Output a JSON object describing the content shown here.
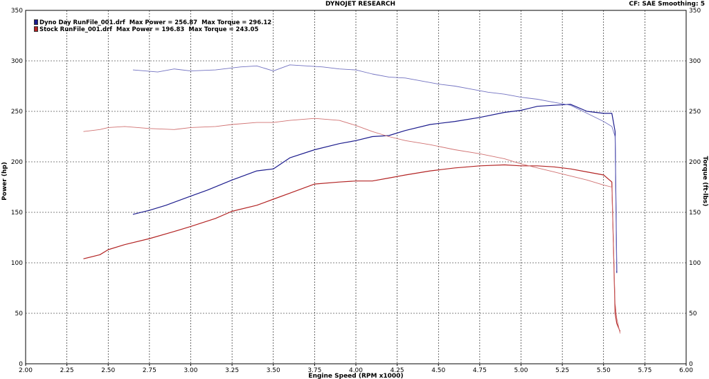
{
  "header": {
    "title": "DYNOJET RESEARCH",
    "settings": "CF: SAE  Smoothing: 5"
  },
  "legend": [
    {
      "file": "Dyno Day RunFile_001.drf",
      "max_power": "Max Power = 256.87",
      "max_torque": "Max Torque = 296.12",
      "color": "#1a1a8c"
    },
    {
      "file": "Stock RunFile_001.drf",
      "max_power": "Max Power = 196.83",
      "max_torque": "Max Torque = 243.05",
      "color": "#b22222"
    }
  ],
  "chart_data": {
    "type": "line",
    "xlabel": "Engine Speed (RPM x1000)",
    "ylabel_left": "Power (hp)",
    "ylabel_right": "Torque (ft-lbs)",
    "xlim": [
      2.0,
      6.0
    ],
    "ylim": [
      0,
      350
    ],
    "xticks": [
      "2.00",
      "2.25",
      "2.50",
      "2.75",
      "3.00",
      "3.25",
      "3.50",
      "3.75",
      "4.00",
      "4.25",
      "4.50",
      "4.75",
      "5.00",
      "5.25",
      "5.50",
      "5.75",
      "6.00"
    ],
    "yticks": [
      "0",
      "50",
      "100",
      "150",
      "200",
      "250",
      "300",
      "350"
    ],
    "grid": true,
    "series": [
      {
        "name": "Dyno Day RunFile_001.drf",
        "measure": "power",
        "color": "#1a1a8c",
        "x": [
          2.65,
          2.75,
          2.85,
          3.0,
          3.1,
          3.25,
          3.4,
          3.5,
          3.6,
          3.75,
          3.9,
          4.0,
          4.1,
          4.2,
          4.3,
          4.45,
          4.6,
          4.75,
          4.9,
          5.0,
          5.1,
          5.2,
          5.3,
          5.4,
          5.5,
          5.55,
          5.57,
          5.58
        ],
        "y": [
          148,
          152,
          157,
          166,
          172,
          182,
          191,
          193,
          204,
          212,
          218,
          221,
          225,
          226,
          231,
          237,
          240,
          244,
          249,
          251,
          255,
          256,
          257,
          250,
          248,
          248,
          230,
          90
        ]
      },
      {
        "name": "Dyno Day RunFile_001.drf",
        "measure": "torque",
        "color": "#7070c0",
        "x": [
          2.65,
          2.8,
          2.9,
          3.0,
          3.15,
          3.3,
          3.4,
          3.5,
          3.6,
          3.7,
          3.8,
          3.9,
          4.0,
          4.1,
          4.2,
          4.3,
          4.4,
          4.5,
          4.6,
          4.7,
          4.8,
          4.9,
          5.0,
          5.1,
          5.2,
          5.3,
          5.4,
          5.5,
          5.55,
          5.57,
          5.58
        ],
        "y": [
          291,
          289,
          292,
          290,
          291,
          294,
          295,
          290,
          296,
          295,
          294,
          292,
          291,
          287,
          284,
          283,
          280,
          277,
          275,
          272,
          269,
          267,
          264,
          262,
          259,
          256,
          248,
          240,
          235,
          225,
          92
        ]
      },
      {
        "name": "Stock RunFile_001.drf",
        "measure": "power",
        "color": "#b22222",
        "x": [
          2.35,
          2.45,
          2.5,
          2.6,
          2.75,
          2.9,
          3.0,
          3.15,
          3.25,
          3.4,
          3.5,
          3.6,
          3.75,
          3.9,
          4.0,
          4.1,
          4.2,
          4.3,
          4.45,
          4.6,
          4.75,
          4.9,
          5.0,
          5.1,
          5.2,
          5.3,
          5.4,
          5.5,
          5.55,
          5.57,
          5.58,
          5.6
        ],
        "y": [
          104,
          108,
          113,
          118,
          124,
          131,
          136,
          144,
          151,
          157,
          163,
          169,
          178,
          180,
          181,
          181,
          184,
          187,
          191,
          194,
          196,
          197,
          196,
          196,
          195,
          193,
          190,
          187,
          180,
          50,
          40,
          32
        ]
      },
      {
        "name": "Stock RunFile_001.drf",
        "measure": "torque",
        "color": "#d07070",
        "x": [
          2.35,
          2.45,
          2.5,
          2.6,
          2.75,
          2.9,
          3.0,
          3.15,
          3.25,
          3.4,
          3.5,
          3.6,
          3.75,
          3.9,
          4.0,
          4.1,
          4.2,
          4.3,
          4.45,
          4.6,
          4.75,
          4.9,
          5.0,
          5.1,
          5.2,
          5.3,
          5.4,
          5.5,
          5.55,
          5.57,
          5.58,
          5.6
        ],
        "y": [
          230,
          232,
          234,
          235,
          233,
          232,
          234,
          235,
          237,
          239,
          239,
          241,
          243,
          241,
          236,
          230,
          225,
          221,
          217,
          212,
          208,
          203,
          198,
          194,
          190,
          186,
          182,
          177,
          175,
          60,
          45,
          30
        ]
      }
    ]
  }
}
